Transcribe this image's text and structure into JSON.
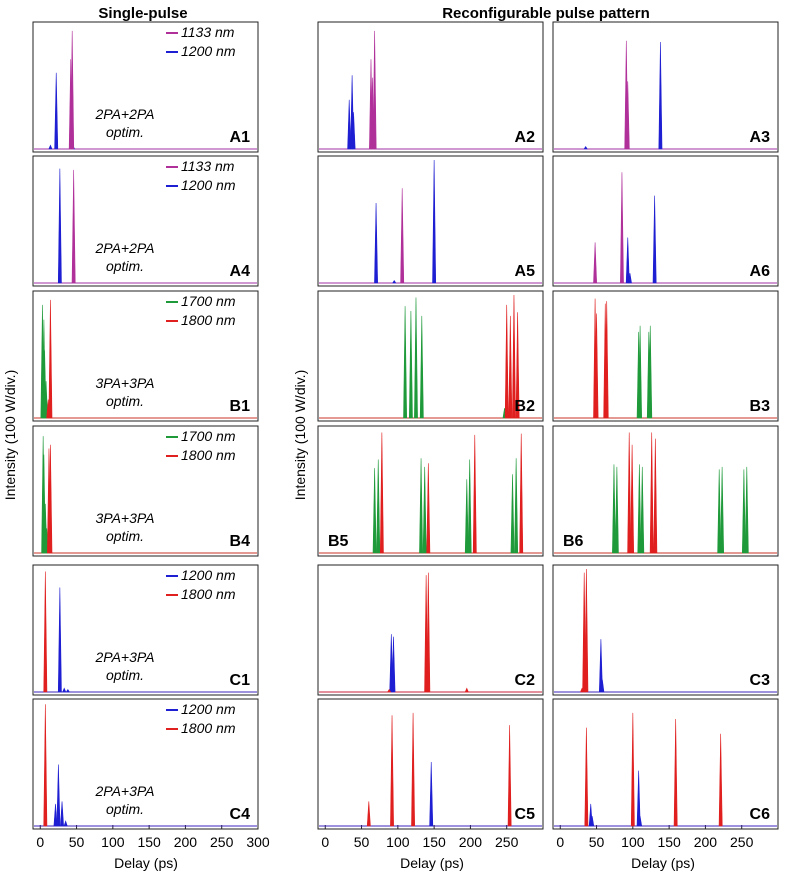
{
  "chart_data": {
    "type": "line",
    "column_titles": {
      "single": "Single-pulse",
      "reconfig": "Reconfigurable pulse pattern"
    },
    "ylabel": "Intensity (100 W/div.)",
    "xlabel": "Delay (ps)",
    "xlim": [
      -10,
      300
    ],
    "xticks": [
      "0",
      "50",
      "100",
      "150",
      "200",
      "250",
      "300"
    ],
    "xtick_values": [
      0,
      50,
      100,
      150,
      200,
      250,
      300
    ],
    "colors": {
      "1133 nm": "#b0309a",
      "1200 nm": "#1e1ed2",
      "1700 nm": "#1f9a3a",
      "1800 nm": "#e01f1f"
    },
    "panels": [
      {
        "id": "A1",
        "row": 0,
        "col": 0,
        "label_pos": "right",
        "legend": [
          "1133 nm",
          "1200 nm"
        ],
        "annotation": [
          "2PA+2PA",
          "optim."
        ],
        "series": [
          {
            "name": "1200 nm",
            "peaks": [
              [
                22,
                0.62
              ],
              [
                14,
                0.03
              ],
              [
                45,
                0.03
              ]
            ]
          },
          {
            "name": "1133 nm",
            "peaks": [
              [
                42,
                0.73
              ],
              [
                44,
                0.96
              ]
            ]
          }
        ]
      },
      {
        "id": "A2",
        "row": 0,
        "col": 1,
        "label_pos": "right",
        "series": [
          {
            "name": "1200 nm",
            "peaks": [
              [
                33,
                0.4
              ],
              [
                37,
                0.6
              ],
              [
                39,
                0.3
              ]
            ]
          },
          {
            "name": "1133 nm",
            "peaks": [
              [
                63,
                0.73
              ],
              [
                65,
                0.58
              ],
              [
                68,
                0.96
              ]
            ]
          }
        ]
      },
      {
        "id": "A3",
        "row": 0,
        "col": 2,
        "label_pos": "right",
        "series": [
          {
            "name": "1200 nm",
            "peaks": [
              [
                138,
                0.87
              ],
              [
                35,
                0.02
              ]
            ]
          },
          {
            "name": "1133 nm",
            "peaks": [
              [
                91,
                0.88
              ],
              [
                93,
                0.55
              ]
            ]
          }
        ]
      },
      {
        "id": "A4",
        "row": 1,
        "col": 0,
        "label_pos": "right",
        "legend": [
          "1133 nm",
          "1200 nm"
        ],
        "annotation": [
          "2PA+2PA",
          "optim."
        ],
        "series": [
          {
            "name": "1200 nm",
            "peaks": [
              [
                27,
                0.93
              ]
            ]
          },
          {
            "name": "1133 nm",
            "peaks": [
              [
                46,
                0.92
              ]
            ]
          }
        ]
      },
      {
        "id": "A5",
        "row": 1,
        "col": 1,
        "label_pos": "right",
        "series": [
          {
            "name": "1200 nm",
            "peaks": [
              [
                70,
                0.65
              ],
              [
                150,
                1.0
              ],
              [
                95,
                0.02
              ]
            ]
          },
          {
            "name": "1133 nm",
            "peaks": [
              [
                106,
                0.77
              ]
            ]
          }
        ]
      },
      {
        "id": "A6",
        "row": 1,
        "col": 2,
        "label_pos": "right",
        "series": [
          {
            "name": "1200 nm",
            "peaks": [
              [
                93,
                0.37
              ],
              [
                96,
                0.08
              ],
              [
                130,
                0.71
              ]
            ]
          },
          {
            "name": "1133 nm",
            "peaks": [
              [
                48,
                0.33
              ],
              [
                85,
                0.9
              ]
            ]
          }
        ]
      },
      {
        "id": "B1",
        "row": 2,
        "col": 0,
        "label_pos": "right",
        "legend": [
          "1700 nm",
          "1800 nm"
        ],
        "annotation": [
          "3PA+3PA",
          "optim."
        ],
        "series": [
          {
            "name": "1700 nm",
            "peaks": [
              [
                3,
                0.92
              ],
              [
                5,
                0.8
              ],
              [
                6,
                0.55
              ],
              [
                8,
                0.3
              ]
            ]
          },
          {
            "name": "1800 nm",
            "peaks": [
              [
                14,
                0.96
              ],
              [
                11,
                0.15
              ]
            ]
          }
        ]
      },
      {
        "id": "B2",
        "row": 2,
        "col": 1,
        "label_pos": "right",
        "series": [
          {
            "name": "1700 nm",
            "peaks": [
              [
                110,
                0.91
              ],
              [
                118,
                0.87
              ],
              [
                125,
                0.98
              ],
              [
                133,
                0.83
              ],
              [
                247,
                0.08
              ]
            ]
          },
          {
            "name": "1800 nm",
            "peaks": [
              [
                250,
                0.92
              ],
              [
                255,
                0.83
              ],
              [
                260,
                1.0
              ],
              [
                265,
                0.86
              ]
            ]
          }
        ]
      },
      {
        "id": "B3",
        "row": 2,
        "col": 2,
        "label_pos": "right",
        "series": [
          {
            "name": "1700 nm",
            "peaks": [
              [
                108,
                0.7
              ],
              [
                110,
                0.75
              ],
              [
                122,
                0.7
              ],
              [
                124,
                0.75
              ]
            ]
          },
          {
            "name": "1800 nm",
            "peaks": [
              [
                48,
                0.97
              ],
              [
                50,
                0.85
              ],
              [
                62,
                0.93
              ],
              [
                64,
                0.95
              ]
            ]
          }
        ]
      },
      {
        "id": "B4",
        "row": 3,
        "col": 0,
        "label_pos": "right",
        "legend": [
          "1700 nm",
          "1800 nm"
        ],
        "annotation": [
          "3PA+3PA",
          "optim."
        ],
        "series": [
          {
            "name": "1700 nm",
            "peaks": [
              [
                4,
                0.95
              ],
              [
                5,
                0.8
              ],
              [
                7,
                0.4
              ],
              [
                9,
                0.2
              ]
            ]
          },
          {
            "name": "1800 nm",
            "peaks": [
              [
                12,
                0.85
              ],
              [
                14,
                0.88
              ]
            ]
          }
        ]
      },
      {
        "id": "B5",
        "row": 3,
        "col": 1,
        "label_pos": "left",
        "series": [
          {
            "name": "1700 nm",
            "peaks": [
              [
                68,
                0.69
              ],
              [
                73,
                0.76
              ],
              [
                132,
                0.77
              ],
              [
                137,
                0.7
              ],
              [
                195,
                0.6
              ],
              [
                199,
                0.76
              ],
              [
                258,
                0.64
              ],
              [
                263,
                0.77
              ]
            ]
          },
          {
            "name": "1800 nm",
            "peaks": [
              [
                78,
                0.98
              ],
              [
                142,
                0.73
              ],
              [
                206,
                0.96
              ],
              [
                270,
                0.97
              ]
            ]
          }
        ]
      },
      {
        "id": "B6",
        "row": 3,
        "col": 2,
        "label_pos": "left",
        "series": [
          {
            "name": "1700 nm",
            "peaks": [
              [
                74,
                0.72
              ],
              [
                78,
                0.7
              ],
              [
                109,
                0.72
              ],
              [
                113,
                0.7
              ],
              [
                219,
                0.68
              ],
              [
                223,
                0.7
              ],
              [
                253,
                0.68
              ],
              [
                257,
                0.7
              ]
            ]
          },
          {
            "name": "1800 nm",
            "peaks": [
              [
                95,
                0.98
              ],
              [
                99,
                0.88
              ],
              [
                126,
                0.98
              ],
              [
                131,
                0.93
              ]
            ]
          }
        ]
      },
      {
        "id": "C1",
        "row": 4,
        "col": 0,
        "label_pos": "right",
        "legend": [
          "1200 nm",
          "1800 nm"
        ],
        "annotation": [
          "2PA+3PA",
          "optim."
        ],
        "series": [
          {
            "name": "1800 nm",
            "peaks": [
              [
                7,
                0.98
              ]
            ]
          },
          {
            "name": "1200 nm",
            "peaks": [
              [
                27,
                0.85
              ],
              [
                33,
                0.03
              ],
              [
                38,
                0.02
              ]
            ]
          }
        ]
      },
      {
        "id": "C2",
        "row": 4,
        "col": 1,
        "label_pos": "right",
        "series": [
          {
            "name": "1200 nm",
            "peaks": [
              [
                91,
                0.47
              ],
              [
                94,
                0.45
              ]
            ]
          },
          {
            "name": "1800 nm",
            "peaks": [
              [
                139,
                0.95
              ],
              [
                142,
                0.97
              ],
              [
                195,
                0.03
              ],
              [
                88,
                0.02
              ]
            ]
          }
        ]
      },
      {
        "id": "C3",
        "row": 4,
        "col": 2,
        "label_pos": "right",
        "series": [
          {
            "name": "1800 nm",
            "peaks": [
              [
                33,
                0.97
              ],
              [
                36,
                1.0
              ],
              [
                30,
                0.03
              ]
            ]
          },
          {
            "name": "1200 nm",
            "peaks": [
              [
                56,
                0.43
              ],
              [
                58,
                0.1
              ]
            ]
          }
        ]
      },
      {
        "id": "C4",
        "row": 5,
        "col": 0,
        "label_pos": "right",
        "legend": [
          "1200 nm",
          "1800 nm"
        ],
        "annotation": [
          "2PA+3PA",
          "optim."
        ],
        "series": [
          {
            "name": "1800 nm",
            "peaks": [
              [
                7,
                0.99
              ]
            ]
          },
          {
            "name": "1200 nm",
            "peaks": [
              [
                21,
                0.18
              ],
              [
                25,
                0.5
              ],
              [
                30,
                0.2
              ],
              [
                35,
                0.04
              ]
            ]
          }
        ]
      },
      {
        "id": "C5",
        "row": 5,
        "col": 1,
        "label_pos": "right",
        "series": [
          {
            "name": "1800 nm",
            "peaks": [
              [
                60,
                0.2
              ],
              [
                92,
                0.9
              ],
              [
                121,
                0.92
              ],
              [
                254,
                0.82
              ]
            ]
          },
          {
            "name": "1200 nm",
            "peaks": [
              [
                146,
                0.52
              ]
            ]
          }
        ]
      },
      {
        "id": "C6",
        "row": 5,
        "col": 2,
        "label_pos": "right",
        "series": [
          {
            "name": "1800 nm",
            "peaks": [
              [
                36,
                0.8
              ],
              [
                100,
                0.92
              ],
              [
                159,
                0.87
              ],
              [
                221,
                0.75
              ]
            ]
          },
          {
            "name": "1200 nm",
            "peaks": [
              [
                42,
                0.18
              ],
              [
                44,
                0.08
              ],
              [
                108,
                0.45
              ],
              [
                110,
                0.08
              ]
            ]
          }
        ]
      }
    ]
  }
}
